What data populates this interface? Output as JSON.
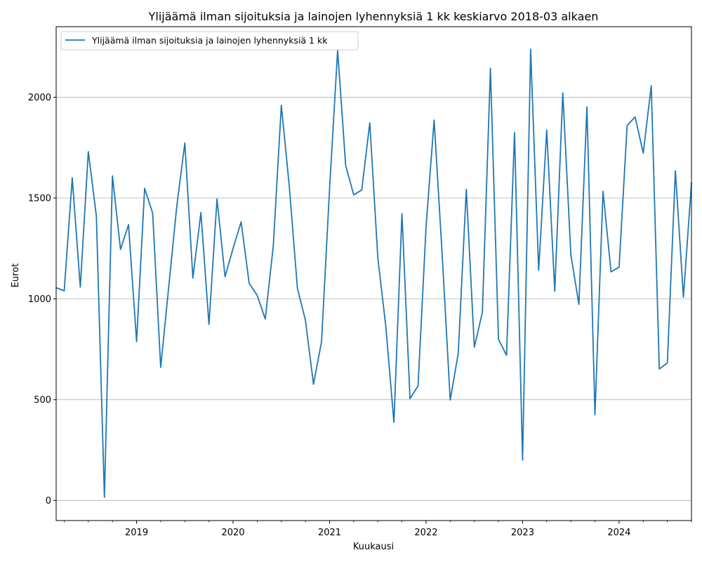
{
  "chart_data": {
    "type": "line",
    "title": "Ylijäämä ilman sijoituksia ja lainojen lyhennyksiä 1 kk keskiarvo 2018-03 alkaen",
    "xlabel": "Kuukausi",
    "ylabel": "Eurot",
    "x_start": "2018-03",
    "xlim": [
      "2018-03",
      "2024-10"
    ],
    "ylim": [
      -100,
      2350
    ],
    "y_ticks": [
      0,
      500,
      1000,
      1500,
      2000
    ],
    "x_ticks": [
      {
        "date": "2019-01",
        "label": "2019"
      },
      {
        "date": "2020-01",
        "label": "2020"
      },
      {
        "date": "2021-01",
        "label": "2021"
      },
      {
        "date": "2022-01",
        "label": "2022"
      },
      {
        "date": "2023-01",
        "label": "2023"
      },
      {
        "date": "2024-01",
        "label": "2024"
      }
    ],
    "grid": "y",
    "legend_position": "top-left",
    "color": "#1f77b4",
    "series": [
      {
        "name": "Ylijäämä ilman sijoituksia ja lainojen lyhennyksiä 1 kk",
        "x": [
          "2018-03",
          "2018-04",
          "2018-05",
          "2018-06",
          "2018-07",
          "2018-08",
          "2018-09",
          "2018-10",
          "2018-11",
          "2018-12",
          "2019-01",
          "2019-02",
          "2019-03",
          "2019-04",
          "2019-05",
          "2019-06",
          "2019-07",
          "2019-08",
          "2019-09",
          "2019-10",
          "2019-11",
          "2019-12",
          "2020-01",
          "2020-02",
          "2020-03",
          "2020-04",
          "2020-05",
          "2020-06",
          "2020-07",
          "2020-08",
          "2020-09",
          "2020-10",
          "2020-11",
          "2020-12",
          "2021-01",
          "2021-02",
          "2021-03",
          "2021-04",
          "2021-05",
          "2021-06",
          "2021-07",
          "2021-08",
          "2021-09",
          "2021-10",
          "2021-11",
          "2021-12",
          "2022-01",
          "2022-02",
          "2022-03",
          "2022-04",
          "2022-05",
          "2022-06",
          "2022-07",
          "2022-08",
          "2022-09",
          "2022-10",
          "2022-11",
          "2022-12",
          "2023-01",
          "2023-02",
          "2023-03",
          "2023-04",
          "2023-05",
          "2023-06",
          "2023-07",
          "2023-08",
          "2023-09",
          "2023-10",
          "2023-11",
          "2023-12",
          "2024-01",
          "2024-02",
          "2024-03",
          "2024-04",
          "2024-05",
          "2024-06",
          "2024-07",
          "2024-08",
          "2024-09",
          "2024-10"
        ],
        "values": [
          1055,
          1040,
          1600,
          1058,
          1730,
          1410,
          15,
          1610,
          1245,
          1368,
          788,
          1548,
          1425,
          660,
          1060,
          1460,
          1773,
          1103,
          1428,
          873,
          1495,
          1110,
          1250,
          1382,
          1077,
          1017,
          900,
          1263,
          1960,
          1553,
          1052,
          893,
          576,
          788,
          1547,
          2233,
          1662,
          1516,
          1540,
          1873,
          1203,
          860,
          387,
          1423,
          505,
          568,
          1360,
          1887,
          1220,
          498,
          730,
          1543,
          760,
          933,
          2143,
          800,
          720,
          1825,
          200,
          2238,
          1142,
          1837,
          1038,
          2022,
          1220,
          972,
          1952,
          425,
          1533,
          1134,
          1157,
          1860,
          1902,
          1723,
          2057,
          652,
          682,
          1635,
          1008,
          1575
        ]
      }
    ]
  }
}
